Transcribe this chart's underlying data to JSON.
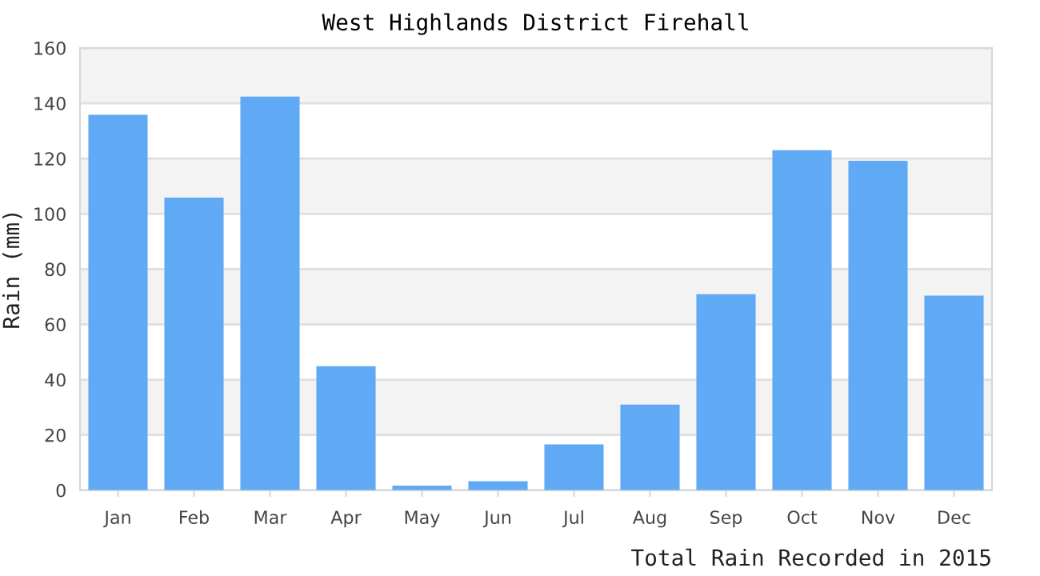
{
  "chart_data": {
    "type": "bar",
    "title": "West Highlands District Firehall",
    "xlabel": "Total Rain Recorded in 2015",
    "ylabel": "Rain (mm)",
    "categories": [
      "Jan",
      "Feb",
      "Mar",
      "Apr",
      "May",
      "Jun",
      "Jul",
      "Aug",
      "Sep",
      "Oct",
      "Nov",
      "Dec"
    ],
    "values": [
      135.8,
      105.9,
      142.4,
      44.9,
      1.7,
      3.3,
      16.6,
      31.0,
      70.9,
      123.0,
      119.2,
      70.4
    ],
    "color": "#60a9f4",
    "ylim": [
      0,
      160
    ],
    "yticks": [
      0,
      20,
      40,
      60,
      80,
      100,
      120,
      140,
      160
    ],
    "grid": "y",
    "legend": false,
    "bands": [
      {
        "axis": "y",
        "from": 20,
        "to": 40,
        "color": "#f3f3f3"
      },
      {
        "axis": "y",
        "from": 60,
        "to": 80,
        "color": "#f3f3f3"
      },
      {
        "axis": "y",
        "from": 100,
        "to": 120,
        "color": "#f3f3f3"
      },
      {
        "axis": "y",
        "from": 140,
        "to": 160,
        "color": "#f3f3f3"
      }
    ]
  }
}
